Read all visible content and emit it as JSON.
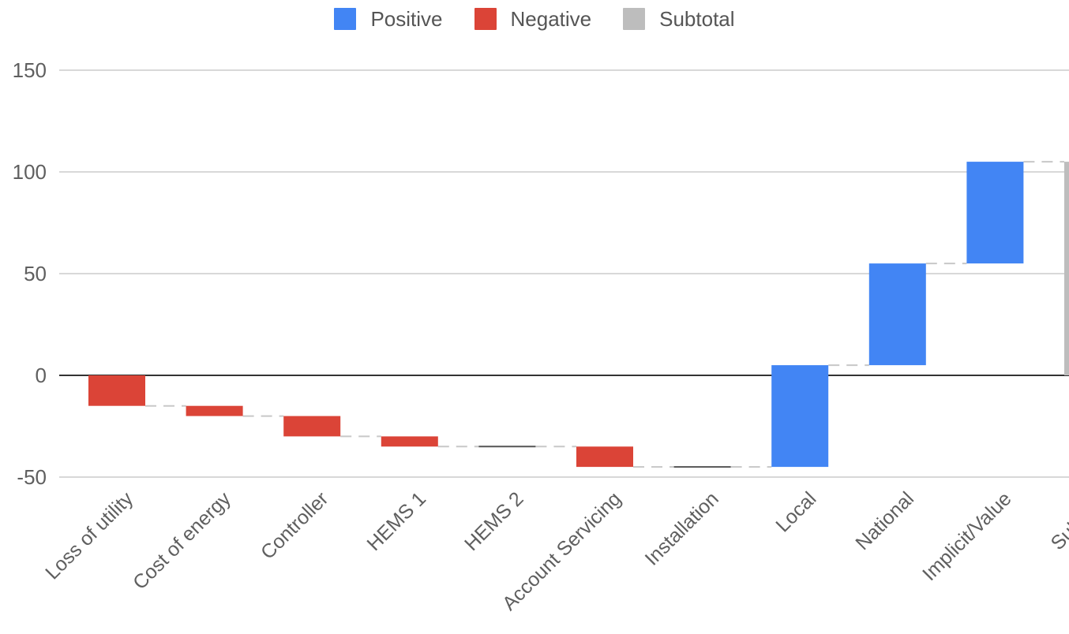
{
  "legend": {
    "positive": {
      "label": "Positive",
      "color": "#4285f4"
    },
    "negative": {
      "label": "Negative",
      "color": "#db4437"
    },
    "subtotal": {
      "label": "Subtotal",
      "color": "#bdbdbd"
    }
  },
  "chart_data": {
    "type": "waterfall",
    "title": "",
    "xlabel": "",
    "ylabel": "",
    "ylim": [
      -50,
      150
    ],
    "yticks": [
      "150",
      "100",
      "50",
      "0",
      "-50"
    ],
    "yticks_values": [
      150,
      100,
      50,
      0,
      -50
    ],
    "grid": true,
    "legend_position": "top-center",
    "categories": [
      "Loss of utility",
      "Cost of energy",
      "Controller",
      "HEMS 1",
      "HEMS 2",
      "Account Servicing",
      "Installation",
      "Local",
      "National",
      "Implicit/Value",
      "Subtotal"
    ],
    "values": [
      -15,
      -5,
      -10,
      -5,
      0,
      -10,
      0,
      50,
      50,
      50,
      105
    ],
    "kinds": [
      "negative",
      "negative",
      "negative",
      "negative",
      "negative",
      "negative",
      "negative",
      "positive",
      "positive",
      "positive",
      "subtotal"
    ],
    "bars": [
      {
        "start": 0,
        "end": -15
      },
      {
        "start": -15,
        "end": -20
      },
      {
        "start": -20,
        "end": -30
      },
      {
        "start": -30,
        "end": -35
      },
      {
        "start": -35,
        "end": -35
      },
      {
        "start": -35,
        "end": -45
      },
      {
        "start": -45,
        "end": -45
      },
      {
        "start": -45,
        "end": 5
      },
      {
        "start": 5,
        "end": 55
      },
      {
        "start": 55,
        "end": 105
      },
      {
        "start": 0,
        "end": 105
      }
    ]
  }
}
